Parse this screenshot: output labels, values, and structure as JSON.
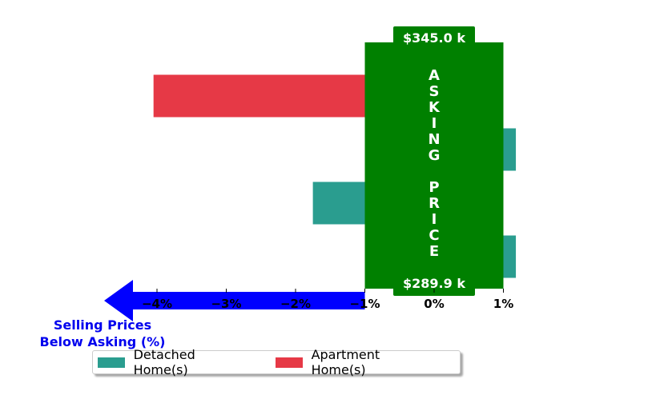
{
  "chart_data": {
    "type": "bar",
    "orientation": "horizontal",
    "title": "",
    "xlabel": "Selling Prices Below Asking (%)",
    "xlabel_lines": [
      "Selling Prices",
      "Below Asking (%)"
    ],
    "xlim": [
      -5.0,
      1.2
    ],
    "x_ticks": [
      -4,
      -3,
      -2,
      -1,
      0,
      1
    ],
    "x_tick_labels": [
      "−4%",
      "−3%",
      "−2%",
      "−1%",
      "0%",
      "1%"
    ],
    "grid": false,
    "legend_placement": "bottom-left",
    "series": [
      {
        "name": "Detached Home(s)",
        "color": "#2a9d8f",
        "values": [
          null,
          1.18,
          -1.75,
          1.18
        ]
      },
      {
        "name": "Apartment Home(s)",
        "color": "#e63946",
        "values": [
          -4.05,
          null,
          null,
          null
        ]
      }
    ],
    "rows_top_to_bottom": 4,
    "asking_price_box": {
      "label": "ASKING PRICE",
      "letters": [
        "A",
        "S",
        "K",
        "I",
        "N",
        "G",
        "",
        "P",
        "R",
        "I",
        "C",
        "E"
      ],
      "top_value_label": "$345.0 k",
      "bottom_value_label": "$289.9 k",
      "color": "#008000"
    },
    "arrow_color": "#0000ff"
  }
}
